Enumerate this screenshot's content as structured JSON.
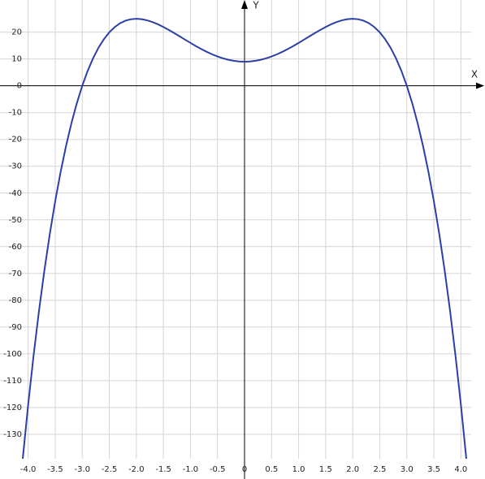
{
  "chart_data": {
    "type": "line",
    "x_label": "X",
    "y_label": "Y",
    "x": [
      -4.1,
      -4.0,
      -3.9,
      -3.8,
      -3.7,
      -3.6,
      -3.5,
      -3.4,
      -3.3,
      -3.2,
      -3.1,
      -3.0,
      -2.9,
      -2.8,
      -2.7,
      -2.6,
      -2.5,
      -2.4,
      -2.3,
      -2.2,
      -2.1,
      -2.0,
      -1.9,
      -1.8,
      -1.7,
      -1.6,
      -1.5,
      -1.4,
      -1.3,
      -1.2,
      -1.1,
      -1.0,
      -0.9,
      -0.8,
      -0.7,
      -0.6,
      -0.5,
      -0.4,
      -0.3,
      -0.2,
      -0.1,
      0,
      0.1,
      0.2,
      0.3,
      0.4,
      0.5,
      0.6,
      0.7,
      0.8,
      0.9,
      1.0,
      1.1,
      1.2,
      1.3,
      1.4,
      1.5,
      1.6,
      1.7,
      1.8,
      1.9,
      2.0,
      2.1,
      2.2,
      2.3,
      2.4,
      2.5,
      2.6,
      2.7,
      2.8,
      2.9,
      3.0,
      3.1,
      3.2,
      3.3,
      3.4,
      3.5,
      3.6,
      3.7,
      3.8,
      3.9,
      4.0,
      4.1
    ],
    "values": [
      -139.1,
      -119,
      -100.66,
      -83.99,
      -68.9,
      -55.28,
      -43.06,
      -32.15,
      -22.47,
      -13.94,
      -6.47,
      0,
      5.55,
      10.25,
      14.18,
      17.38,
      19.94,
      21.9,
      23.34,
      24.29,
      24.83,
      25,
      24.85,
      24.42,
      23.77,
      22.93,
      21.94,
      20.84,
      19.66,
      18.45,
      17.22,
      16,
      14.82,
      13.71,
      12.68,
      11.75,
      10.94,
      10.25,
      9.71,
      9.32,
      9.08,
      9,
      9.08,
      9.32,
      9.71,
      10.25,
      10.94,
      11.75,
      12.68,
      13.71,
      14.82,
      16,
      17.22,
      18.45,
      19.66,
      20.84,
      21.94,
      22.93,
      23.77,
      24.42,
      24.85,
      25,
      24.83,
      24.29,
      23.34,
      21.9,
      19.94,
      17.38,
      14.18,
      10.25,
      5.55,
      0,
      -6.47,
      -13.94,
      -22.47,
      -32.15,
      -43.06,
      -55.28,
      -68.9,
      -83.99,
      -100.66,
      -119,
      -139.1
    ],
    "color": "#2b3fa6",
    "xlim": [
      -4.1,
      4.1
    ],
    "ylim": [
      -139.1,
      32
    ],
    "xticks": [
      {
        "value": -4,
        "label": "-4.0"
      },
      -3.5,
      {
        "value": -3,
        "label": "-3.0"
      },
      -2.5,
      {
        "value": -2,
        "label": "-2.0"
      },
      -1.5,
      {
        "value": -1,
        "label": "-1.0"
      },
      -0.5,
      0,
      0.5,
      {
        "value": 1,
        "label": "1.0"
      },
      1.5,
      {
        "value": 2,
        "label": "2.0"
      },
      2.5,
      {
        "value": 3,
        "label": "3.0"
      },
      3.5,
      {
        "value": 4,
        "label": "4.0"
      }
    ],
    "yticks": [
      20,
      10,
      0,
      -10,
      -20,
      -30,
      -40,
      -50,
      -60,
      -70,
      -80,
      -90,
      -100,
      -110,
      -120,
      -130
    ],
    "grid": true
  }
}
